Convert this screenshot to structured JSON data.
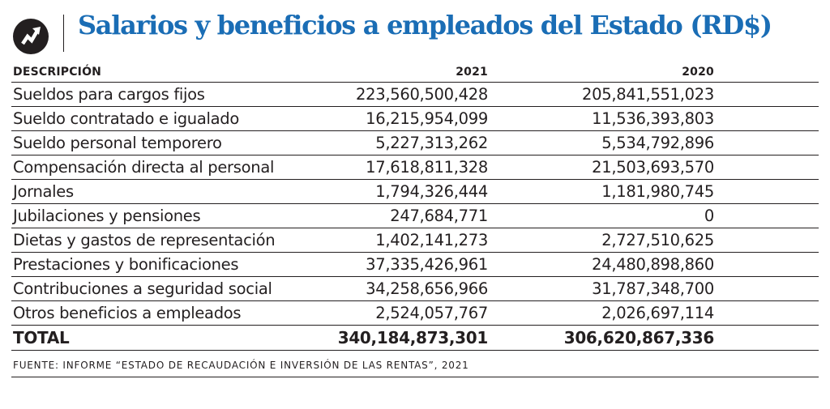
{
  "header": {
    "title": "Salarios y beneficios a empleados del Estado (RD$)",
    "logo_icon": "trend-arrow-icon"
  },
  "chart_data": {
    "type": "table",
    "title": "Salarios y beneficios a empleados del Estado (RD$)",
    "columns": [
      "DESCRIPCIÓN",
      "2021",
      "2020"
    ],
    "rows": [
      {
        "label": "Sueldos para cargos fijos",
        "v2021": "223,560,500,428",
        "v2020": "205,841,551,023"
      },
      {
        "label": "Sueldo contratado e igualado",
        "v2021": "16,215,954,099",
        "v2020": "11,536,393,803"
      },
      {
        "label": "Sueldo personal temporero",
        "v2021": "5,227,313,262",
        "v2020": "5,534,792,896"
      },
      {
        "label": "Compensación directa al personal",
        "v2021": "17,618,811,328",
        "v2020": "21,503,693,570"
      },
      {
        "label": "Jornales",
        "v2021": "1,794,326,444",
        "v2020": "1,181,980,745"
      },
      {
        "label": "Jubilaciones y pensiones",
        "v2021": "247,684,771",
        "v2020": "0"
      },
      {
        "label": "Dietas y gastos de representación",
        "v2021": "1,402,141,273",
        "v2020": "2,727,510,625"
      },
      {
        "label": "Prestaciones y bonificaciones",
        "v2021": "37,335,426,961",
        "v2020": "24,480,898,860"
      },
      {
        "label": "Contribuciones a seguridad social",
        "v2021": "34,258,656,966",
        "v2020": "31,787,348,700"
      },
      {
        "label": "Otros beneficios a empleados",
        "v2021": "2,524,057,767",
        "v2020": "2,026,697,114"
      }
    ],
    "total": {
      "label": "TOTAL",
      "v2021": "340,184,873,301",
      "v2020": "306,620,867,336"
    }
  },
  "source": "FUENTE: INFORME “ESTADO DE RECAUDACIÓN E INVERSIÓN DE LAS RENTAS”, 2021",
  "colors": {
    "title": "#1a6db5",
    "text": "#231f20",
    "background": "#ffffff"
  }
}
